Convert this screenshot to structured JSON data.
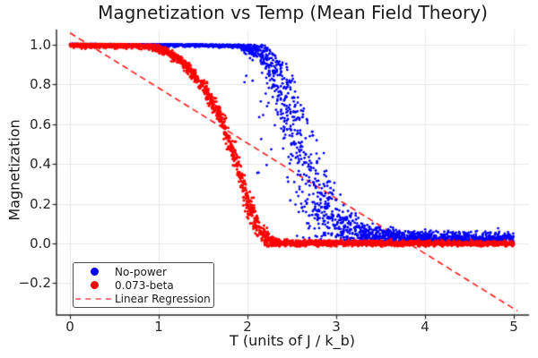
{
  "chart_data": {
    "type": "scatter",
    "title": "Magnetization vs Temp (Mean Field Theory)",
    "xlabel": "T (units of J / k_b)",
    "ylabel": "Magnetization",
    "xlim": [
      -0.152,
      5.172
    ],
    "ylim": [
      -0.36,
      1.077
    ],
    "grid": true,
    "grid_color": "#e8e8e8",
    "spine_color": "#262626",
    "background": "#ffffff",
    "x_ticks": {
      "values": [
        0,
        1,
        2,
        3,
        4,
        5
      ],
      "labels": [
        "0",
        "1",
        "2",
        "3",
        "4",
        "5"
      ]
    },
    "y_ticks": {
      "values": [
        1.0,
        0.8,
        0.6,
        0.4,
        0.2,
        0.0,
        -0.2
      ],
      "labels": [
        "1.0",
        "0.8",
        "0.6",
        "0.4",
        "0.2",
        "0.0",
        "−0.2"
      ]
    },
    "series": [
      {
        "name": "No-power",
        "color": "#0000ff",
        "marker_radius": 1.4,
        "n_points": 3000,
        "seed": 20240,
        "t_range": [
          0,
          5
        ],
        "backbone": [
          [
            0,
            1.0
          ],
          [
            1.5,
            1.0
          ],
          [
            1.9,
            0.995
          ],
          [
            2.1,
            0.975
          ],
          [
            2.2,
            0.945
          ],
          [
            2.3,
            0.87
          ],
          [
            2.4,
            0.76
          ],
          [
            2.5,
            0.61
          ],
          [
            2.6,
            0.46
          ],
          [
            2.7,
            0.31
          ],
          [
            2.85,
            0.18
          ],
          [
            3.0,
            0.1
          ],
          [
            3.2,
            0.05
          ],
          [
            3.5,
            0.03
          ],
          [
            4.0,
            0.025
          ],
          [
            5,
            0.022
          ]
        ],
        "sigma": [
          [
            0,
            0.0035
          ],
          [
            1.8,
            0.005
          ],
          [
            2.0,
            0.012
          ],
          [
            2.15,
            0.03
          ],
          [
            2.3,
            0.1
          ],
          [
            2.45,
            0.17
          ],
          [
            2.6,
            0.18
          ],
          [
            2.75,
            0.15
          ],
          [
            2.9,
            0.1
          ],
          [
            3.1,
            0.055
          ],
          [
            3.4,
            0.028
          ],
          [
            3.8,
            0.02
          ],
          [
            5,
            0.018
          ]
        ],
        "upper": [
          [
            0,
            1.005
          ],
          [
            2.2,
            1.0
          ],
          [
            2.3,
            0.95
          ],
          [
            2.45,
            0.9
          ],
          [
            2.6,
            0.78
          ],
          [
            2.7,
            0.64
          ],
          [
            2.8,
            0.52
          ],
          [
            2.95,
            0.37
          ],
          [
            3.1,
            0.24
          ],
          [
            3.3,
            0.14
          ],
          [
            3.6,
            0.1
          ],
          [
            4.2,
            0.09
          ],
          [
            5,
            0.085
          ]
        ],
        "spray": {
          "t0": 1.95,
          "t1": 2.4,
          "p": 0.05,
          "min_frac": 0.3
        },
        "clamp_min": -0.005
      },
      {
        "name": "0.073-beta",
        "color": "#ff0000",
        "marker_radius": 1.5,
        "n_points": 3000,
        "seed": 777,
        "t_range": [
          0,
          5
        ],
        "backbone": [
          [
            0,
            1.0
          ],
          [
            0.8,
            1.0
          ],
          [
            1.0,
            0.985
          ],
          [
            1.2,
            0.94
          ],
          [
            1.4,
            0.85
          ],
          [
            1.55,
            0.75
          ],
          [
            1.7,
            0.63
          ],
          [
            1.8,
            0.51
          ],
          [
            1.9,
            0.38
          ],
          [
            2.0,
            0.22
          ],
          [
            2.1,
            0.1
          ],
          [
            2.2,
            0.03
          ],
          [
            2.32,
            0.003
          ],
          [
            5,
            0.0
          ]
        ],
        "sigma": [
          [
            0,
            0.006
          ],
          [
            0.9,
            0.009
          ],
          [
            1.3,
            0.014
          ],
          [
            1.6,
            0.022
          ],
          [
            1.8,
            0.03
          ],
          [
            1.95,
            0.037
          ],
          [
            2.1,
            0.035
          ],
          [
            2.25,
            0.015
          ],
          [
            2.4,
            0.007
          ],
          [
            5,
            0.006
          ]
        ],
        "upper": [
          [
            0,
            1.006
          ],
          [
            1.0,
            1.002
          ],
          [
            1.3,
            0.98
          ],
          [
            1.6,
            0.87
          ],
          [
            1.9,
            0.6
          ],
          [
            2.1,
            0.32
          ],
          [
            2.3,
            0.08
          ],
          [
            2.5,
            0.028
          ],
          [
            5,
            0.024
          ]
        ],
        "spray": {
          "t0": 0,
          "t1": 0,
          "p": 0,
          "min_frac": 1
        },
        "clamp_min": -0.015
      }
    ],
    "regression": {
      "label": "Linear Regression",
      "color": "#ff0000",
      "opacity": 0.9,
      "slope": -0.2776,
      "intercept": 1.06,
      "x_range": [
        0,
        5.04
      ],
      "dash": [
        7,
        4.5
      ],
      "line_width": 1.6
    },
    "legend": {
      "position": "lower left",
      "items": [
        {
          "label": "No-power",
          "marker": "dot",
          "color": "#0000ff"
        },
        {
          "label": "0.073-beta",
          "marker": "dot",
          "color": "#ff0000"
        },
        {
          "label": "Linear Regression",
          "marker": "dash",
          "color": "#fa8080"
        }
      ]
    }
  }
}
